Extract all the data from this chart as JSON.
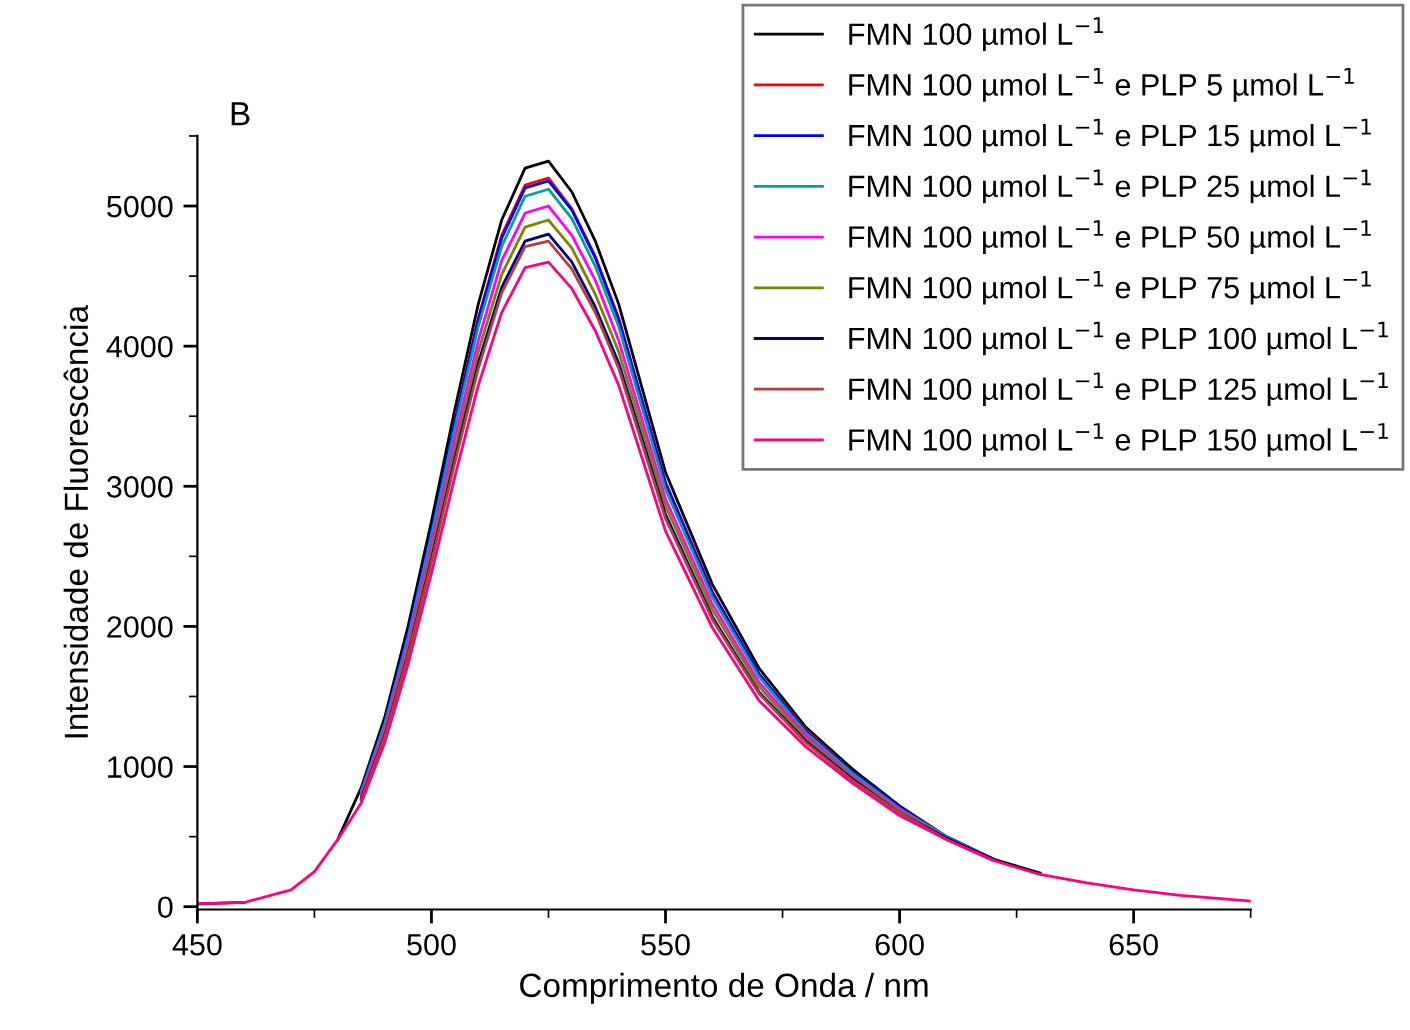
{
  "chart_data": {
    "type": "line",
    "xlabel": "Comprimento de Onda / nm",
    "ylabel": "Intensidade de Fluorescência",
    "annotations": [
      "B"
    ],
    "x": [
      450,
      460,
      470,
      475,
      480,
      485,
      490,
      495,
      500,
      505,
      510,
      515,
      520,
      525,
      530,
      535,
      540,
      550,
      560,
      570,
      580,
      590,
      600,
      610,
      620,
      630,
      640,
      650,
      660,
      675
    ],
    "xlim": [
      450,
      675
    ],
    "xticks": [
      450,
      500,
      550,
      600,
      650
    ],
    "ylim": [
      -20,
      5500
    ],
    "yticks": [
      0,
      1000,
      2000,
      3000,
      4000,
      5000
    ],
    "grid": false,
    "legend": "top right",
    "marker": "none",
    "line_style": "solid",
    "series": [
      {
        "name": "FMN 100 µmol L$^{−1}$",
        "color": "#000000",
        "values": [
          20,
          30,
          null,
          null,
          480,
          850,
          1350,
          2000,
          2750,
          3550,
          4300,
          4900,
          5270,
          5320,
          5100,
          4750,
          4300,
          3100,
          2300,
          1700,
          1280,
          980,
          720,
          500,
          340,
          240,
          null,
          null,
          null,
          null
        ]
      },
      {
        "name": "FMN 100 µmol L$^{−1}$ e PLP 5 µmol L$^{−1}$",
        "color": "#ff0000",
        "values": [
          null,
          null,
          null,
          null,
          null,
          null,
          null,
          null,
          null,
          3470,
          4200,
          4790,
          5150,
          5200,
          4980,
          4640,
          4200,
          3030,
          2250,
          1660,
          1260,
          960,
          710,
          500,
          340,
          null,
          null,
          null,
          null,
          null
        ]
      },
      {
        "name": "FMN 100 µmol L$^{−1}$ e PLP 15 µmol L$^{−1}$",
        "color": "#0000ff",
        "values": [
          null,
          null,
          null,
          null,
          null,
          830,
          1310,
          1950,
          2680,
          3460,
          4190,
          4770,
          5130,
          5180,
          4970,
          4630,
          4190,
          3020,
          2240,
          1660,
          1250,
          960,
          710,
          500,
          340,
          null,
          null,
          null,
          null,
          null
        ]
      },
      {
        "name": "FMN 100 µmol L$^{−1}$ e PLP 25 µmol L$^{−1}$",
        "color": "#00a0a0",
        "values": [
          null,
          null,
          null,
          null,
          null,
          820,
          1300,
          1920,
          2650,
          3420,
          4140,
          4710,
          5070,
          5120,
          4910,
          4570,
          4140,
          2980,
          2210,
          1640,
          1240,
          950,
          700,
          500,
          340,
          null,
          null,
          null,
          null,
          null
        ]
      },
      {
        "name": "FMN 100 µmol L$^{−1}$ e PLP 50 µmol L$^{−1}$",
        "color": "#ff00ff",
        "values": [
          null,
          null,
          null,
          null,
          null,
          800,
          1270,
          1880,
          2590,
          3340,
          4040,
          4610,
          4950,
          5000,
          4790,
          4470,
          4040,
          2910,
          2160,
          1600,
          1220,
          930,
          690,
          490,
          340,
          null,
          null,
          null,
          null,
          null
        ]
      },
      {
        "name": "FMN 100 µmol L$^{−1}$ e PLP 75 µmol L$^{−1}$",
        "color": "#808000",
        "values": [
          null,
          null,
          null,
          null,
          null,
          780,
          1240,
          1840,
          2530,
          3270,
          3960,
          4510,
          4850,
          4900,
          4700,
          4370,
          3960,
          2860,
          2120,
          1570,
          1200,
          920,
          680,
          490,
          340,
          null,
          null,
          null,
          null,
          null
        ]
      },
      {
        "name": "FMN 100 µmol L$^{−1}$ e PLP 100 µmol L$^{−1}$",
        "color": "#000080",
        "values": [
          null,
          null,
          null,
          null,
          null,
          770,
          1220,
          1800,
          2480,
          3200,
          3880,
          4420,
          4750,
          4800,
          4600,
          4280,
          3880,
          2800,
          2070,
          1530,
          1180,
          910,
          670,
          490,
          340,
          null,
          null,
          null,
          null,
          null
        ]
      },
      {
        "name": "FMN 100 µmol L$^{−1}$ e PLP 125 µmol L$^{−1}$",
        "color": "#b04040",
        "values": [
          null,
          null,
          null,
          null,
          null,
          760,
          1210,
          1790,
          2460,
          3170,
          3840,
          4380,
          4710,
          4750,
          4550,
          4240,
          3840,
          2770,
          2050,
          1520,
          1170,
          900,
          670,
          480,
          330,
          null,
          null,
          null,
          null,
          null
        ]
      },
      {
        "name": "FMN 100 µmol L$^{−1}$ e PLP 150 µmol L$^{−1}$",
        "color": "#ff0080",
        "values": [
          20,
          30,
          120,
          250,
          480,
          740,
          1170,
          1730,
          2380,
          3070,
          3720,
          4240,
          4560,
          4600,
          4410,
          4110,
          3720,
          2680,
          1990,
          1470,
          1140,
          880,
          650,
          480,
          330,
          230,
          170,
          120,
          80,
          40
        ]
      }
    ]
  }
}
